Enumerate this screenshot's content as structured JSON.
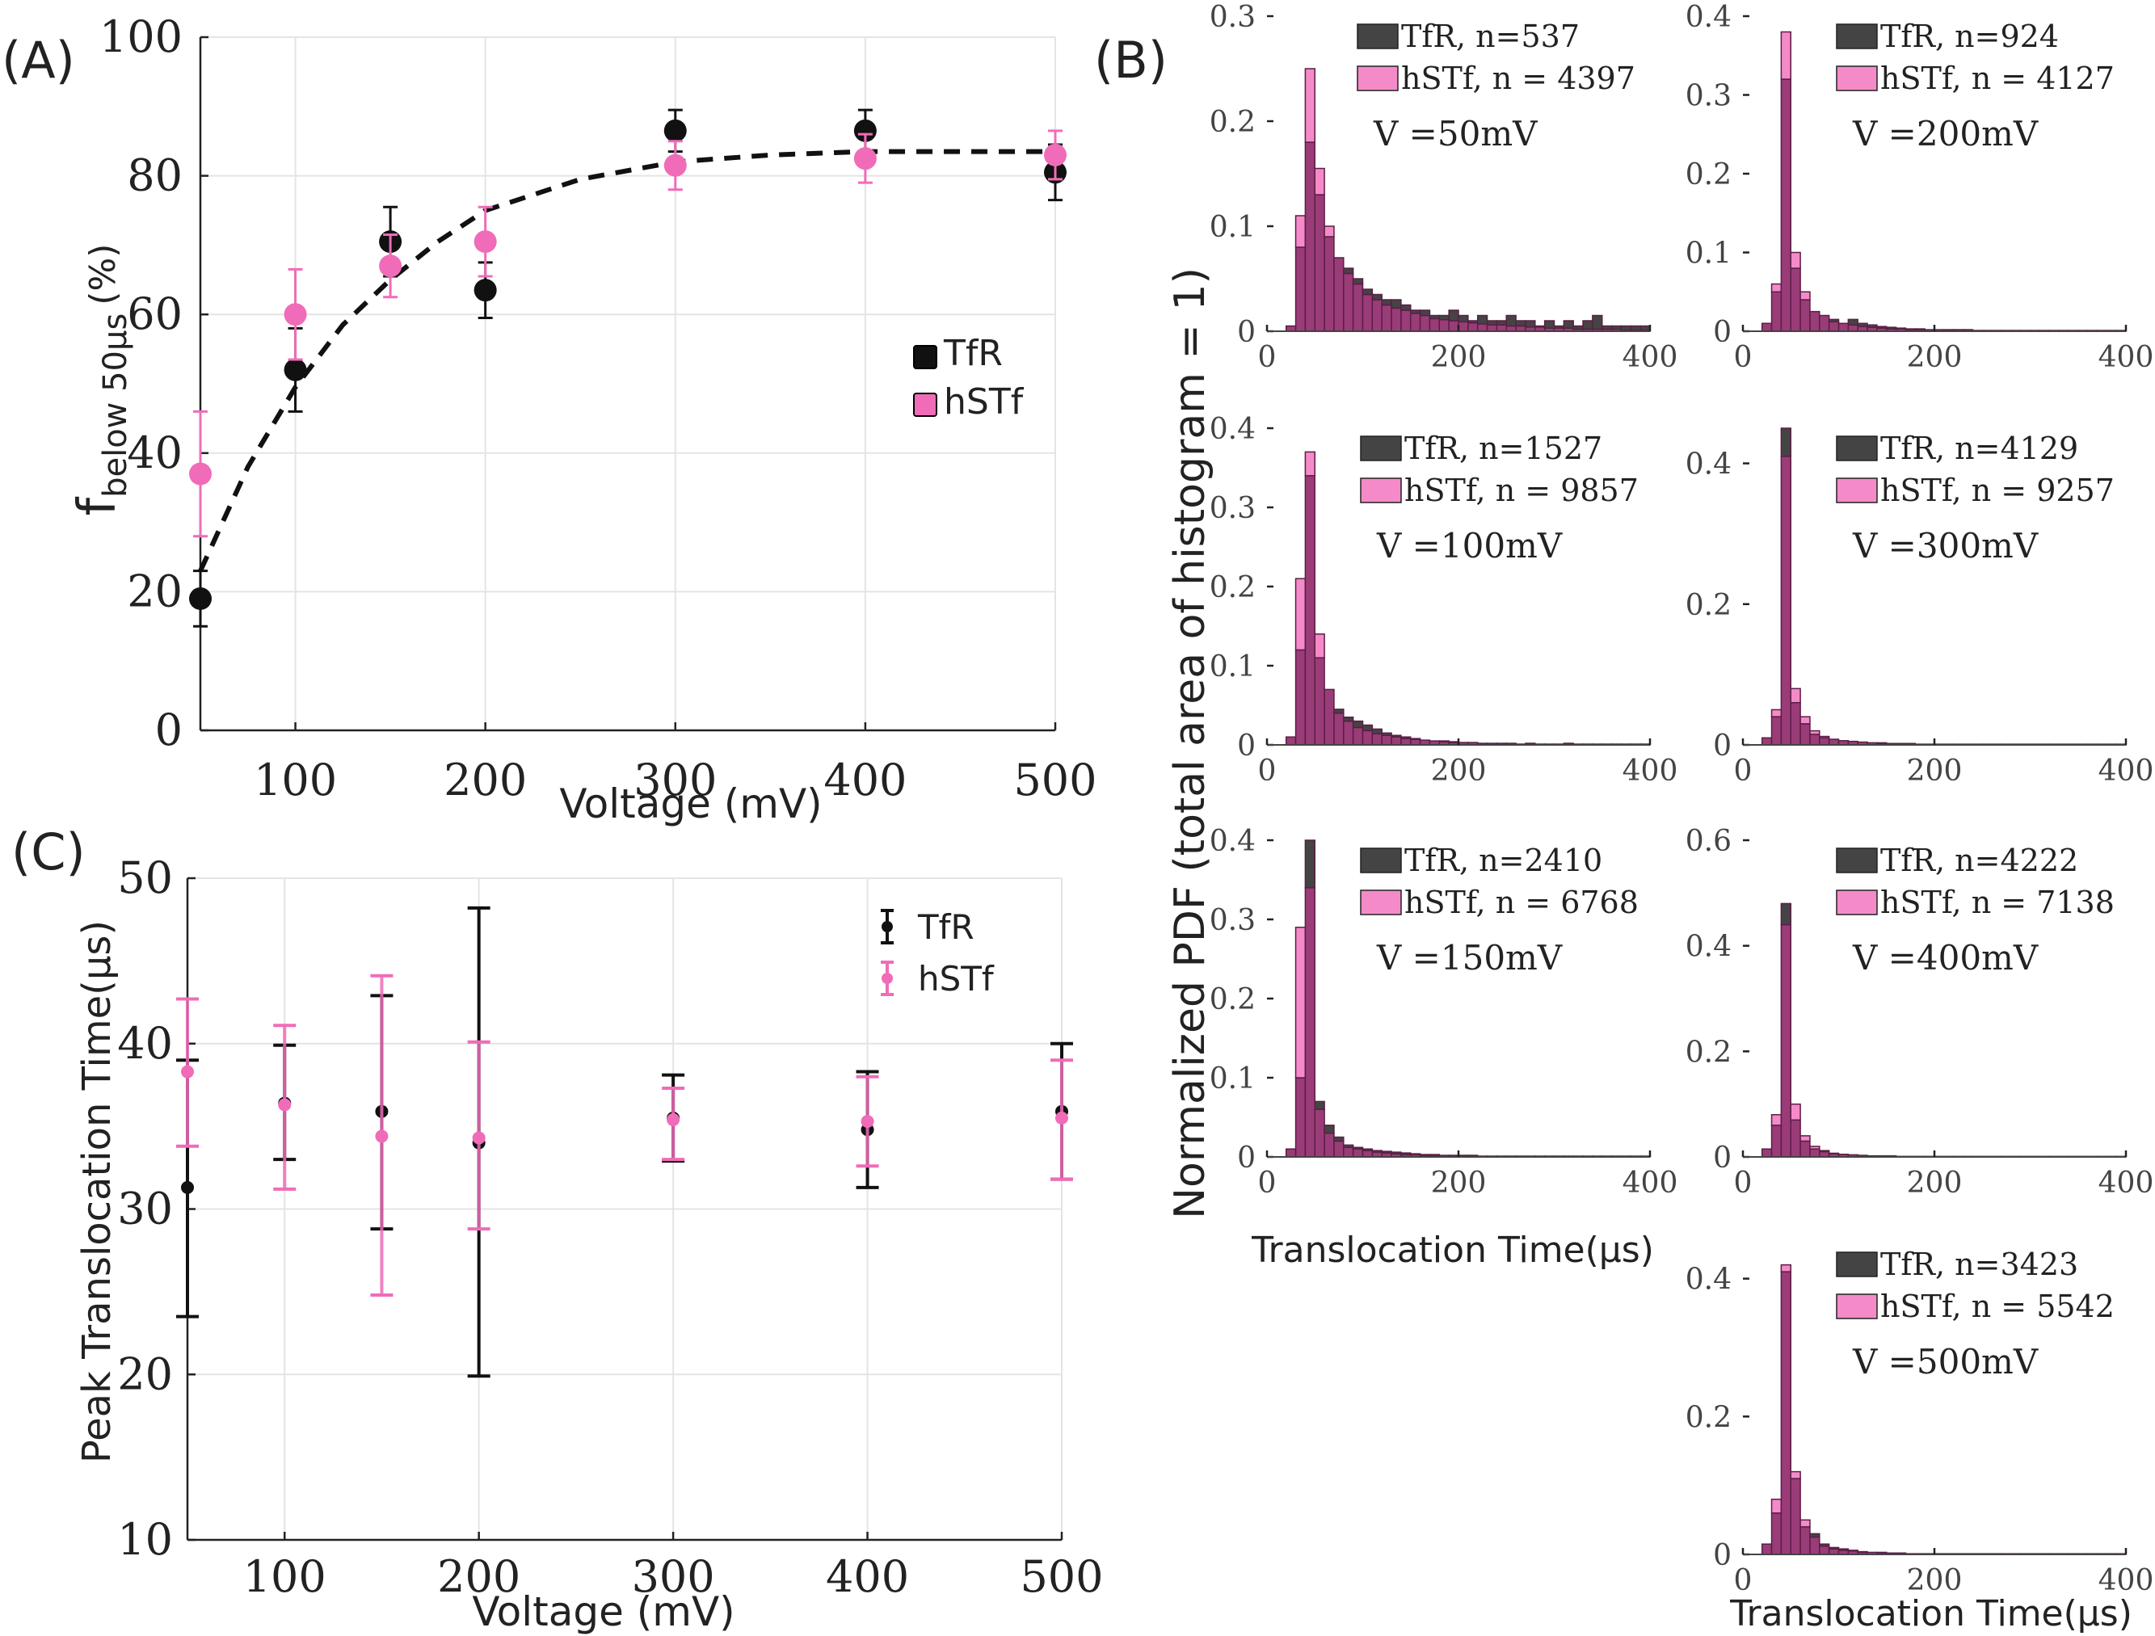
{
  "colors": {
    "tfr": "#111111",
    "hstf": "#f06cb8",
    "tfr_hist": "#444444",
    "hstf_hist": "#f48bc8",
    "overlap": "#9a3c78"
  },
  "chart_data": [
    {
      "panel": "(A)",
      "type": "scatter",
      "xlabel": "Voltage (mV)",
      "ylabel_main": "f",
      "ylabel_sub": "below 50µs",
      "ylabel_unit": "(%)",
      "xlim": [
        50,
        500
      ],
      "ylim": [
        0,
        100
      ],
      "xticks": [
        "100",
        "200",
        "300",
        "400",
        "500"
      ],
      "yticks": [
        "0",
        "20",
        "40",
        "60",
        "80",
        "100"
      ],
      "legend": [
        "TfR",
        "hSTf"
      ],
      "series": [
        {
          "name": "TfR",
          "x": [
            50,
            100,
            150,
            200,
            300,
            400,
            500
          ],
          "y": [
            19,
            52,
            70.5,
            63.5,
            86.5,
            86.5,
            80.5
          ],
          "err": [
            4,
            6,
            5,
            4,
            3,
            3,
            4
          ]
        },
        {
          "name": "hSTf",
          "x": [
            50,
            100,
            150,
            200,
            300,
            400,
            500
          ],
          "y": [
            37,
            60,
            67,
            70.5,
            81.5,
            82.5,
            83
          ],
          "err": [
            9,
            6.5,
            4.5,
            5,
            3.5,
            3.5,
            3.5
          ]
        }
      ],
      "fit": {
        "x": [
          50,
          75,
          100,
          125,
          150,
          175,
          200,
          250,
          300,
          350,
          400,
          450,
          500
        ],
        "y": [
          23,
          38,
          49.5,
          58.5,
          65,
          70.5,
          75,
          79.5,
          82,
          83,
          83.5,
          83.5,
          83.5
        ]
      }
    },
    {
      "panel": "(C)",
      "type": "scatter",
      "xlabel": "Voltage (mV)",
      "ylabel": "Peak Translocation Time(µs)",
      "xlim": [
        50,
        500
      ],
      "ylim": [
        10,
        50
      ],
      "xticks": [
        "100",
        "200",
        "300",
        "400",
        "500"
      ],
      "yticks": [
        "10",
        "20",
        "30",
        "40",
        "50"
      ],
      "legend": [
        "TfR",
        "hSTf"
      ],
      "series": [
        {
          "name": "TfR",
          "x": [
            50,
            100,
            150,
            200,
            300,
            400,
            500
          ],
          "y": [
            31.3,
            36.4,
            35.9,
            34,
            35.5,
            34.8,
            35.9
          ],
          "lo": [
            23.5,
            33,
            28.8,
            19.9,
            32.9,
            31.3,
            31.8
          ],
          "hi": [
            39,
            39.9,
            42.9,
            48.2,
            38.1,
            38.3,
            40
          ]
        },
        {
          "name": "hSTf",
          "x": [
            50,
            100,
            150,
            200,
            300,
            400,
            500
          ],
          "y": [
            38.3,
            36.3,
            34.4,
            34.3,
            35.4,
            35.3,
            35.5
          ],
          "lo": [
            33.8,
            31.2,
            24.8,
            28.8,
            33,
            32.6,
            31.8
          ],
          "hi": [
            42.7,
            41.1,
            44.1,
            40.1,
            37.3,
            38,
            39
          ]
        }
      ]
    },
    {
      "panel": "(B)",
      "type": "bar",
      "ylabel": "Normalized PDF (total area of histogram = 1)",
      "xlabel": "Translocation Time(µs)",
      "xlim": [
        0,
        400
      ],
      "xticks": [
        "0",
        "200",
        "400"
      ],
      "bins": [
        20,
        30,
        40,
        50,
        60,
        70,
        80,
        90,
        100,
        110,
        120,
        130,
        140,
        150,
        160,
        170,
        180,
        190,
        200,
        210,
        220,
        230,
        240,
        250,
        260,
        270,
        280,
        290,
        300,
        310,
        320,
        330,
        340,
        350,
        360,
        370,
        380,
        390
      ],
      "histograms": [
        {
          "id": "50",
          "tfr_label": "TfR, n=537",
          "hstf_label": "hSTf, n = 4397",
          "voltage_label": "V =50mV",
          "ylim": [
            0,
            0.3
          ],
          "yticks": [
            "0",
            "0.1",
            "0.2",
            "0.3"
          ],
          "tfr": [
            0.005,
            0.08,
            0.18,
            0.13,
            0.09,
            0.07,
            0.06,
            0.05,
            0.04,
            0.035,
            0.03,
            0.03,
            0.025,
            0.02,
            0.02,
            0.015,
            0.015,
            0.02,
            0.015,
            0.01,
            0.015,
            0.01,
            0.01,
            0.015,
            0.01,
            0.01,
            0.005,
            0.01,
            0.005,
            0.01,
            0.005,
            0.01,
            0.015,
            0.005,
            0.005,
            0.005,
            0.005,
            0.005
          ],
          "hstf": [
            0.005,
            0.11,
            0.25,
            0.155,
            0.1,
            0.07,
            0.055,
            0.045,
            0.035,
            0.03,
            0.025,
            0.022,
            0.02,
            0.017,
            0.015,
            0.012,
            0.011,
            0.01,
            0.009,
            0.008,
            0.007,
            0.006,
            0.006,
            0.005,
            0.005,
            0.004,
            0.004,
            0.003,
            0.003,
            0.003,
            0.002,
            0.002,
            0.002,
            0.002,
            0.002,
            0.001,
            0.001,
            0.001
          ]
        },
        {
          "id": "200",
          "tfr_label": "TfR, n=924",
          "hstf_label": "hSTf, n = 4127",
          "voltage_label": "V =200mV",
          "ylim": [
            0,
            0.4
          ],
          "yticks": [
            "0",
            "0.1",
            "0.2",
            "0.3",
            "0.4"
          ],
          "tfr": [
            0.01,
            0.05,
            0.32,
            0.08,
            0.04,
            0.025,
            0.02,
            0.015,
            0.01,
            0.015,
            0.01,
            0.008,
            0.006,
            0.005,
            0.004,
            0.003,
            0.003,
            0.002,
            0.002,
            0.002,
            0.002,
            0.002,
            0.001,
            0.001,
            0.001,
            0.001,
            0.001,
            0.001,
            0.001,
            0.001,
            0.001,
            0.001,
            0.001,
            0.001,
            0.001,
            0.001,
            0.001,
            0.001
          ],
          "hstf": [
            0.01,
            0.06,
            0.38,
            0.1,
            0.05,
            0.025,
            0.02,
            0.012,
            0.01,
            0.008,
            0.006,
            0.005,
            0.004,
            0.003,
            0.003,
            0.002,
            0.002,
            0.002,
            0.002,
            0.001,
            0.001,
            0.001,
            0.001,
            0.001,
            0.001,
            0.001,
            0.001,
            0.001,
            0.001,
            0.001,
            0.001,
            0.001,
            0.001,
            0.001,
            0.001,
            0.001,
            0.001,
            0.001
          ]
        },
        {
          "id": "100",
          "tfr_label": "TfR, n=1527",
          "hstf_label": "hSTf, n = 9857",
          "voltage_label": "V =100mV",
          "ylim": [
            0,
            0.4
          ],
          "yticks": [
            "0",
            "0.1",
            "0.2",
            "0.3",
            "0.4"
          ],
          "tfr": [
            0.01,
            0.12,
            0.34,
            0.11,
            0.07,
            0.045,
            0.035,
            0.03,
            0.025,
            0.02,
            0.015,
            0.012,
            0.01,
            0.008,
            0.006,
            0.005,
            0.005,
            0.004,
            0.003,
            0.003,
            0.002,
            0.002,
            0.002,
            0.002,
            0.001,
            0.002,
            0.001,
            0.001,
            0.001,
            0.002,
            0.001,
            0.001,
            0.001,
            0.001,
            0.001,
            0.001,
            0.001,
            0.001
          ],
          "hstf": [
            0.01,
            0.21,
            0.37,
            0.14,
            0.07,
            0.04,
            0.03,
            0.022,
            0.018,
            0.014,
            0.012,
            0.01,
            0.008,
            0.007,
            0.006,
            0.005,
            0.004,
            0.003,
            0.003,
            0.003,
            0.002,
            0.002,
            0.002,
            0.002,
            0.001,
            0.001,
            0.001,
            0.001,
            0.001,
            0.001,
            0.001,
            0.001,
            0.001,
            0.001,
            0.001,
            0.001,
            0.001,
            0.001
          ]
        },
        {
          "id": "300",
          "tfr_label": "TfR, n=4129",
          "hstf_label": "hSTf, n = 9257",
          "voltage_label": "V =300mV",
          "ylim": [
            0,
            0.45
          ],
          "yticks": [
            "0",
            "0.2",
            "0.4"
          ],
          "tfr": [
            0.01,
            0.04,
            0.45,
            0.06,
            0.03,
            0.015,
            0.01,
            0.008,
            0.006,
            0.005,
            0.004,
            0.003,
            0.003,
            0.002,
            0.002,
            0.002,
            0.001,
            0.001,
            0.001,
            0.001,
            0.001,
            0.001,
            0.001,
            0.001,
            0.001,
            0.001,
            0.001,
            0.001,
            0.001,
            0.001,
            0.001,
            0.001,
            0.001,
            0.001,
            0.001,
            0.001,
            0.001,
            0.001
          ],
          "hstf": [
            0.01,
            0.05,
            0.41,
            0.08,
            0.04,
            0.02,
            0.012,
            0.008,
            0.006,
            0.005,
            0.004,
            0.003,
            0.002,
            0.002,
            0.002,
            0.001,
            0.001,
            0.001,
            0.001,
            0.001,
            0.001,
            0.001,
            0.001,
            0.001,
            0.001,
            0.001,
            0.001,
            0.001,
            0.001,
            0.001,
            0.001,
            0.001,
            0.001,
            0.001,
            0.001,
            0.001,
            0.001,
            0.001
          ]
        },
        {
          "id": "150",
          "tfr_label": "TfR, n=2410",
          "hstf_label": "hSTf, n = 6768",
          "voltage_label": "V =150mV",
          "ylim": [
            0,
            0.4
          ],
          "yticks": [
            "0",
            "0.1",
            "0.2",
            "0.3",
            "0.4"
          ],
          "tfr": [
            0.01,
            0.1,
            0.4,
            0.07,
            0.04,
            0.025,
            0.015,
            0.012,
            0.01,
            0.008,
            0.007,
            0.006,
            0.005,
            0.004,
            0.003,
            0.003,
            0.002,
            0.002,
            0.002,
            0.002,
            0.001,
            0.001,
            0.001,
            0.001,
            0.001,
            0.001,
            0.001,
            0.001,
            0.001,
            0.001,
            0.001,
            0.001,
            0.001,
            0.001,
            0.001,
            0.001,
            0.001,
            0.001
          ],
          "hstf": [
            0.01,
            0.29,
            0.34,
            0.06,
            0.03,
            0.02,
            0.012,
            0.01,
            0.008,
            0.006,
            0.005,
            0.004,
            0.003,
            0.003,
            0.002,
            0.002,
            0.002,
            0.001,
            0.001,
            0.001,
            0.001,
            0.001,
            0.001,
            0.001,
            0.001,
            0.001,
            0.001,
            0.001,
            0.001,
            0.001,
            0.001,
            0.001,
            0.001,
            0.001,
            0.001,
            0.001,
            0.001,
            0.001
          ]
        },
        {
          "id": "400",
          "tfr_label": "TfR, n=4222",
          "hstf_label": "hSTf, n = 7138",
          "voltage_label": "V =400mV",
          "ylim": [
            0,
            0.6
          ],
          "yticks": [
            "0",
            "0.2",
            "0.4",
            "0.6"
          ],
          "tfr": [
            0.015,
            0.06,
            0.48,
            0.07,
            0.03,
            0.015,
            0.01,
            0.006,
            0.005,
            0.004,
            0.003,
            0.002,
            0.002,
            0.002,
            0.001,
            0.001,
            0.001,
            0.001,
            0.001,
            0.001,
            0.001,
            0.001,
            0.001,
            0.001,
            0.001,
            0.001,
            0.001,
            0.001,
            0.001,
            0.001,
            0.001,
            0.001,
            0.001,
            0.001,
            0.001,
            0.001,
            0.001,
            0.001
          ],
          "hstf": [
            0.015,
            0.08,
            0.44,
            0.1,
            0.04,
            0.02,
            0.012,
            0.007,
            0.005,
            0.004,
            0.003,
            0.002,
            0.002,
            0.001,
            0.001,
            0.001,
            0.001,
            0.001,
            0.001,
            0.001,
            0.001,
            0.001,
            0.001,
            0.001,
            0.001,
            0.001,
            0.001,
            0.001,
            0.001,
            0.001,
            0.001,
            0.001,
            0.001,
            0.001,
            0.001,
            0.001,
            0.001,
            0.001
          ]
        },
        {
          "id": "500",
          "tfr_label": "TfR, n=3423",
          "hstf_label": "hSTf, n = 5542",
          "voltage_label": "V =500mV",
          "ylim": [
            0,
            0.45
          ],
          "yticks": [
            "0",
            "0.2",
            "0.4"
          ],
          "tfr": [
            0.015,
            0.06,
            0.41,
            0.11,
            0.04,
            0.03,
            0.015,
            0.01,
            0.008,
            0.006,
            0.004,
            0.003,
            0.003,
            0.002,
            0.002,
            0.001,
            0.001,
            0.001,
            0.001,
            0.001,
            0.001,
            0.001,
            0.001,
            0.001,
            0.001,
            0.001,
            0.001,
            0.001,
            0.001,
            0.001,
            0.001,
            0.001,
            0.001,
            0.001,
            0.001,
            0.001,
            0.001,
            0.001
          ],
          "hstf": [
            0.015,
            0.08,
            0.42,
            0.12,
            0.05,
            0.025,
            0.012,
            0.008,
            0.006,
            0.005,
            0.003,
            0.003,
            0.002,
            0.002,
            0.001,
            0.001,
            0.001,
            0.001,
            0.001,
            0.001,
            0.001,
            0.001,
            0.001,
            0.001,
            0.001,
            0.001,
            0.001,
            0.001,
            0.001,
            0.001,
            0.001,
            0.001,
            0.001,
            0.001,
            0.001,
            0.001,
            0.001,
            0.001
          ]
        }
      ]
    }
  ]
}
